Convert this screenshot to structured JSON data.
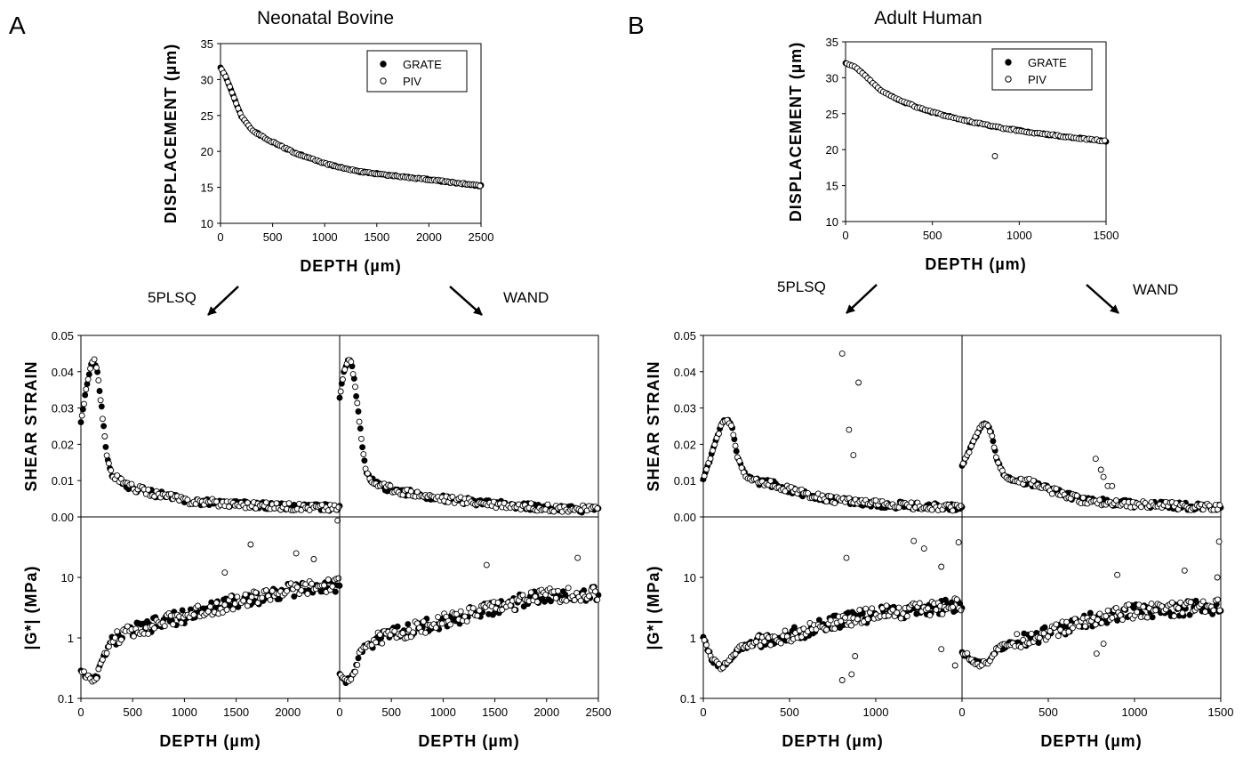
{
  "panel_letters": [
    "A",
    "B"
  ],
  "column_titles": [
    "Neonatal Bovine",
    "Adult Human"
  ],
  "method_labels": {
    "left": "5PLSQ",
    "right": "WAND"
  },
  "colors": {
    "ink": "#000000",
    "background": "#ffffff"
  },
  "chart_data": [
    {
      "id": "bovine-displacement",
      "type": "scatter",
      "panel": "A",
      "title": "Neonatal Bovine",
      "xlabel": "DEPTH (µm)",
      "ylabel": "DISPLACEMENT (µm)",
      "xlim": [
        0,
        2500
      ],
      "ylim": [
        10,
        35
      ],
      "xticks": [
        0,
        500,
        1000,
        1500,
        2000,
        2500
      ],
      "yticks": [
        10,
        15,
        20,
        25,
        30,
        35
      ],
      "legend": {
        "position": "top-right",
        "entries": [
          "GRATE",
          "PIV"
        ]
      },
      "curve": {
        "x": [
          0,
          50,
          100,
          150,
          200,
          300,
          400,
          500,
          700,
          1000,
          1300,
          1600,
          2000,
          2500
        ],
        "y": [
          31.7,
          30.4,
          28.6,
          26.7,
          24.9,
          23.0,
          22.1,
          21.3,
          19.9,
          18.3,
          17.3,
          16.7,
          16.1,
          15.2
        ]
      },
      "series": [
        {
          "name": "GRATE",
          "marker": "filled",
          "step": 20
        },
        {
          "name": "PIV",
          "marker": "open",
          "step": 20,
          "offset": 10
        }
      ]
    },
    {
      "id": "human-displacement",
      "type": "scatter",
      "panel": "B",
      "title": "Adult Human",
      "xlabel": "DEPTH (µm)",
      "ylabel": "DISPLACEMENT (µm)",
      "xlim": [
        0,
        1500
      ],
      "ylim": [
        10,
        35
      ],
      "xticks": [
        0,
        500,
        1000,
        1500
      ],
      "yticks": [
        10,
        15,
        20,
        25,
        30,
        35
      ],
      "legend": {
        "position": "top-right",
        "entries": [
          "GRATE",
          "PIV"
        ]
      },
      "curve": {
        "x": [
          0,
          50,
          100,
          200,
          300,
          400,
          500,
          700,
          900,
          1100,
          1300,
          1500
        ],
        "y": [
          32.0,
          31.6,
          30.6,
          28.3,
          27.0,
          26.0,
          25.2,
          24.0,
          23.0,
          22.3,
          21.7,
          21.2
        ]
      },
      "series": [
        {
          "name": "GRATE",
          "marker": "filled",
          "step": 15
        },
        {
          "name": "PIV",
          "marker": "open",
          "step": 15,
          "offset": 7,
          "outliers": [
            [
              860,
              19.1
            ]
          ]
        }
      ]
    },
    {
      "id": "bovine-5plsq-strain",
      "type": "scatter",
      "panel": "A",
      "method": "5PLSQ",
      "xlabel": "",
      "ylabel": "SHEAR STRAIN",
      "xlim": [
        0,
        2500
      ],
      "ylim": [
        0,
        0.05
      ],
      "yticks": [
        "0.00",
        "0.01",
        "0.02",
        "0.03",
        "0.04",
        "0.05"
      ],
      "curve": {
        "x": [
          0,
          50,
          100,
          130,
          160,
          200,
          250,
          300,
          400,
          500,
          700,
          1000,
          1500,
          2000,
          2500
        ],
        "y": [
          0.026,
          0.035,
          0.042,
          0.043,
          0.04,
          0.03,
          0.017,
          0.0115,
          0.0095,
          0.008,
          0.0065,
          0.0045,
          0.0035,
          0.0028,
          0.0025
        ]
      },
      "series": [
        {
          "name": "GRATE",
          "marker": "filled",
          "step": 20
        },
        {
          "name": "PIV",
          "marker": "open",
          "step": 20,
          "offset": 10,
          "outliers": [
            [
              2480,
              -0.001
            ]
          ]
        }
      ]
    },
    {
      "id": "bovine-wand-strain",
      "type": "scatter",
      "panel": "A",
      "method": "WAND",
      "xlabel": "",
      "ylabel": "",
      "xlim": [
        0,
        2500
      ],
      "ylim": [
        0,
        0.05
      ],
      "curve": {
        "x": [
          0,
          40,
          80,
          110,
          150,
          200,
          250,
          300,
          400,
          600,
          1000,
          1500,
          2000,
          2500
        ],
        "y": [
          0.033,
          0.04,
          0.043,
          0.043,
          0.036,
          0.024,
          0.013,
          0.01,
          0.0085,
          0.007,
          0.005,
          0.0035,
          0.0025,
          0.002
        ]
      },
      "series": [
        {
          "name": "GRATE",
          "marker": "filled",
          "step": 20
        },
        {
          "name": "PIV",
          "marker": "open",
          "step": 20,
          "offset": 10
        }
      ]
    },
    {
      "id": "human-5plsq-strain",
      "type": "scatter",
      "panel": "B",
      "method": "5PLSQ",
      "xlabel": "",
      "ylabel": "SHEAR STRAIN",
      "xlim": [
        0,
        1500
      ],
      "ylim": [
        0,
        0.05
      ],
      "yticks": [
        "0.00",
        "0.01",
        "0.02",
        "0.03",
        "0.04",
        "0.05"
      ],
      "curve": {
        "x": [
          0,
          40,
          80,
          110,
          140,
          170,
          200,
          250,
          300,
          400,
          500,
          700,
          1000,
          1500
        ],
        "y": [
          0.01,
          0.016,
          0.022,
          0.026,
          0.027,
          0.024,
          0.016,
          0.011,
          0.01,
          0.009,
          0.0075,
          0.005,
          0.0035,
          0.0025
        ]
      },
      "series": [
        {
          "name": "GRATE",
          "marker": "filled",
          "step": 12
        },
        {
          "name": "PIV",
          "marker": "open",
          "step": 12,
          "offset": 6,
          "outliers": [
            [
              805,
              0.045
            ],
            [
              845,
              0.024
            ],
            [
              870,
              0.017
            ],
            [
              900,
              0.037
            ],
            [
              1000,
              0.0045
            ]
          ]
        }
      ]
    },
    {
      "id": "human-wand-strain",
      "type": "scatter",
      "panel": "B",
      "method": "WAND",
      "xlabel": "",
      "ylabel": "",
      "xlim": [
        0,
        1500
      ],
      "ylim": [
        0,
        0.05
      ],
      "curve": {
        "x": [
          0,
          40,
          80,
          110,
          140,
          170,
          200,
          250,
          300,
          400,
          500,
          700,
          1000,
          1500
        ],
        "y": [
          0.014,
          0.018,
          0.022,
          0.025,
          0.026,
          0.023,
          0.016,
          0.011,
          0.01,
          0.0095,
          0.0075,
          0.0045,
          0.0035,
          0.0025
        ]
      },
      "series": [
        {
          "name": "GRATE",
          "marker": "filled",
          "step": 12
        },
        {
          "name": "PIV",
          "marker": "open",
          "step": 12,
          "offset": 6,
          "outliers": [
            [
              775,
              0.016
            ],
            [
              805,
              0.013
            ],
            [
              820,
              0.011
            ],
            [
              845,
              0.0085
            ],
            [
              870,
              0.0085
            ]
          ]
        }
      ]
    },
    {
      "id": "bovine-5plsq-modulus",
      "type": "scatter",
      "panel": "A",
      "method": "5PLSQ",
      "xlabel": "DEPTH (µm)",
      "ylabel": "|G*| (MPa)",
      "xlim": [
        0,
        2500
      ],
      "ylim": [
        0.1,
        100
      ],
      "yscale": "log",
      "xticks": [
        0,
        500,
        1000,
        1500,
        2000
      ],
      "yticks": [
        "0.1",
        "1",
        "10"
      ],
      "curve": {
        "x": [
          0,
          50,
          100,
          150,
          200,
          300,
          500,
          1000,
          1500,
          2000,
          2500
        ],
        "y": [
          0.3,
          0.24,
          0.2,
          0.22,
          0.4,
          0.95,
          1.3,
          2.3,
          4.0,
          6.0,
          7.5
        ]
      },
      "series": [
        {
          "name": "GRATE",
          "marker": "filled",
          "step": 20
        },
        {
          "name": "PIV",
          "marker": "open",
          "step": 20,
          "offset": 10,
          "outliers": [
            [
              1640,
              35
            ],
            [
              2080,
              25
            ],
            [
              2250,
              20
            ],
            [
              1390,
              12
            ]
          ]
        }
      ]
    },
    {
      "id": "bovine-wand-modulus",
      "type": "scatter",
      "panel": "A",
      "method": "WAND",
      "xlabel": "DEPTH (µm)",
      "ylabel": "",
      "xlim": [
        0,
        2500
      ],
      "ylim": [
        0.1,
        100
      ],
      "yscale": "log",
      "xticks": [
        0,
        500,
        1000,
        1500,
        2000,
        2500
      ],
      "curve": {
        "x": [
          0,
          50,
          100,
          150,
          200,
          300,
          500,
          1000,
          1500,
          2000,
          2500
        ],
        "y": [
          0.23,
          0.2,
          0.19,
          0.3,
          0.6,
          0.85,
          1.1,
          1.9,
          3.2,
          5.0,
          5.5
        ]
      },
      "series": [
        {
          "name": "GRATE",
          "marker": "filled",
          "step": 20
        },
        {
          "name": "PIV",
          "marker": "open",
          "step": 20,
          "offset": 10,
          "outliers": [
            [
              1420,
              16
            ],
            [
              2300,
              21
            ]
          ]
        }
      ]
    },
    {
      "id": "human-5plsq-modulus",
      "type": "scatter",
      "panel": "B",
      "method": "5PLSQ",
      "xlabel": "DEPTH (µm)",
      "ylabel": "|G*| (MPa)",
      "xlim": [
        0,
        1500
      ],
      "ylim": [
        0.1,
        100
      ],
      "yscale": "log",
      "xticks": [
        0,
        500,
        1000
      ],
      "yticks": [
        "0.1",
        "1",
        "10"
      ],
      "curve": {
        "x": [
          0,
          50,
          100,
          150,
          200,
          300,
          500,
          800,
          1000,
          1500
        ],
        "y": [
          1.0,
          0.45,
          0.33,
          0.4,
          0.65,
          0.85,
          1.1,
          1.9,
          2.5,
          3.5
        ]
      },
      "series": [
        {
          "name": "GRATE",
          "marker": "filled",
          "step": 12
        },
        {
          "name": "PIV",
          "marker": "open",
          "step": 12,
          "offset": 6,
          "outliers": [
            [
              805,
              0.2
            ],
            [
              860,
              0.25
            ],
            [
              880,
              0.5
            ],
            [
              830,
              21
            ],
            [
              1220,
              40
            ],
            [
              1280,
              30
            ],
            [
              1380,
              15
            ],
            [
              1480,
              38
            ],
            [
              1380,
              0.65
            ],
            [
              1460,
              0.35
            ]
          ]
        }
      ]
    },
    {
      "id": "human-wand-modulus",
      "type": "scatter",
      "panel": "B",
      "method": "WAND",
      "xlabel": "DEPTH (µm)",
      "ylabel": "",
      "xlim": [
        0,
        1500
      ],
      "ylim": [
        0.1,
        100
      ],
      "yscale": "log",
      "xticks": [
        0,
        500,
        1000,
        1500
      ],
      "curve": {
        "x": [
          0,
          50,
          100,
          150,
          200,
          300,
          500,
          800,
          1000,
          1500
        ],
        "y": [
          0.6,
          0.45,
          0.36,
          0.4,
          0.65,
          0.85,
          1.2,
          2.2,
          2.8,
          3.3
        ]
      },
      "series": [
        {
          "name": "GRATE",
          "marker": "filled",
          "step": 12
        },
        {
          "name": "PIV",
          "marker": "open",
          "step": 12,
          "offset": 6,
          "outliers": [
            [
              780,
              0.55
            ],
            [
              820,
              0.8
            ],
            [
              900,
              11
            ],
            [
              1290,
              13
            ],
            [
              1480,
              10
            ],
            [
              1490,
              39
            ]
          ]
        }
      ]
    }
  ]
}
